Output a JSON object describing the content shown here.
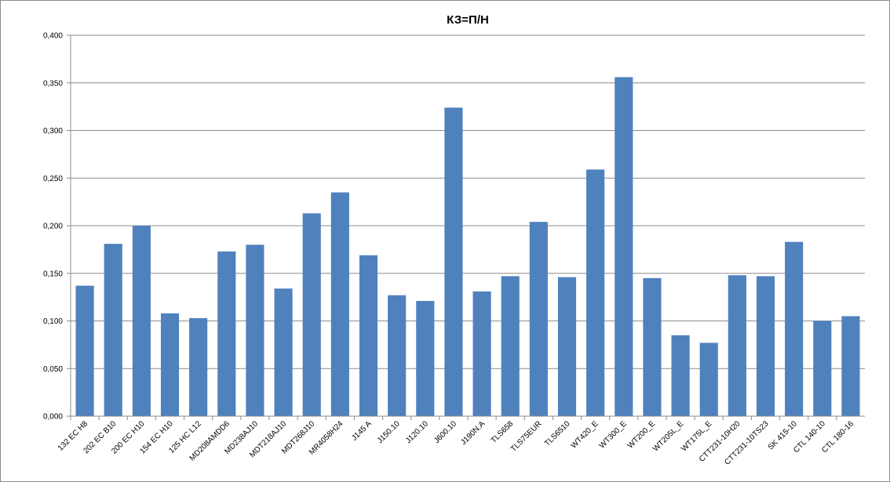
{
  "chart_data": {
    "type": "bar",
    "title": "КЗ=П/Н",
    "categories": [
      "132 EC H8",
      "202 EC B10",
      "200 EC H10",
      "154 EC H10",
      "125 HC L12",
      "MD208AMDD6",
      "MD238AJ10",
      "MDT218AJ10",
      "MDT268J10",
      "MR4058H24",
      "J145 A",
      "J150.10",
      "J120.10",
      "J600.10",
      "J190N.A",
      "TLS658",
      "TLS75EUR",
      "TLS6510",
      "WT420_E",
      "WT300_E",
      "WT200_E",
      "WT205L_E",
      "WT175L_E",
      "CTT231-10H20",
      "CTT231-10TS23",
      "SK 415-10",
      "CTL 140-10",
      "CTL 180-16"
    ],
    "values": [
      0.137,
      0.181,
      0.2,
      0.108,
      0.103,
      0.173,
      0.18,
      0.134,
      0.213,
      0.235,
      0.169,
      0.127,
      0.121,
      0.324,
      0.131,
      0.147,
      0.204,
      0.146,
      0.259,
      0.356,
      0.145,
      0.085,
      0.077,
      0.148,
      0.147,
      0.183,
      0.1,
      0.105
    ],
    "color": "#4f81bd",
    "ylim": [
      0,
      0.4
    ],
    "yticks": [
      {
        "value": 0,
        "label": "0,000"
      },
      {
        "value": 0.05,
        "label": "0,050"
      },
      {
        "value": 0.1,
        "label": "0,100"
      },
      {
        "value": 0.15,
        "label": "0,150"
      },
      {
        "value": 0.2,
        "label": "0,200"
      },
      {
        "value": 0.25,
        "label": "0,250"
      },
      {
        "value": 0.3,
        "label": "0,300"
      },
      {
        "value": 0.35,
        "label": "0,350"
      },
      {
        "value": 0.4,
        "label": "0,400"
      }
    ],
    "grid": true
  }
}
